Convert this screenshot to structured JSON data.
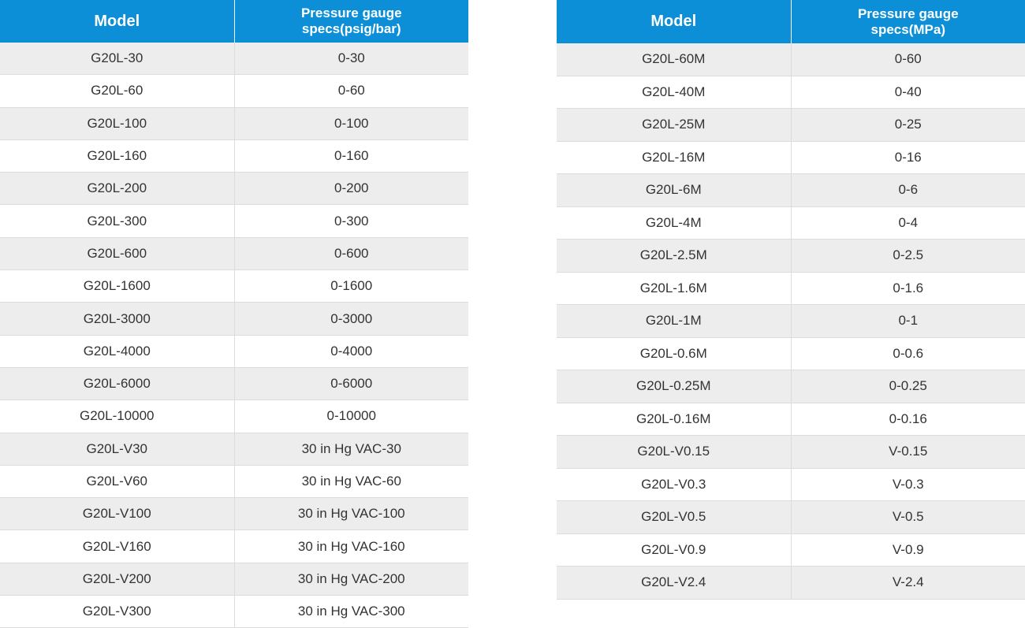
{
  "left_table": {
    "header": {
      "model": "Model",
      "spec_line1": "Pressure gauge",
      "spec_line2": "specs(psig/bar)"
    },
    "rows": [
      {
        "model": "G20L-30",
        "spec": "0-30"
      },
      {
        "model": "G20L-60",
        "spec": "0-60"
      },
      {
        "model": "G20L-100",
        "spec": "0-100"
      },
      {
        "model": "G20L-160",
        "spec": "0-160"
      },
      {
        "model": "G20L-200",
        "spec": "0-200"
      },
      {
        "model": "G20L-300",
        "spec": "0-300"
      },
      {
        "model": "G20L-600",
        "spec": "0-600"
      },
      {
        "model": "G20L-1600",
        "spec": "0-1600"
      },
      {
        "model": "G20L-3000",
        "spec": "0-3000"
      },
      {
        "model": "G20L-4000",
        "spec": "0-4000"
      },
      {
        "model": "G20L-6000",
        "spec": "0-6000"
      },
      {
        "model": "G20L-10000",
        "spec": "0-10000"
      },
      {
        "model": "G20L-V30",
        "spec": "30 in Hg VAC-30"
      },
      {
        "model": "G20L-V60",
        "spec": "30 in Hg VAC-60"
      },
      {
        "model": "G20L-V100",
        "spec": "30 in Hg VAC-100"
      },
      {
        "model": "G20L-V160",
        "spec": "30 in Hg VAC-160"
      },
      {
        "model": "G20L-V200",
        "spec": "30 in Hg VAC-200"
      },
      {
        "model": "G20L-V300",
        "spec": "30 in Hg VAC-300"
      }
    ]
  },
  "right_table": {
    "header": {
      "model": "Model",
      "spec_line1": "Pressure gauge",
      "spec_line2": "specs(MPa)"
    },
    "rows": [
      {
        "model": "G20L-60M",
        "spec": "0-60"
      },
      {
        "model": "G20L-40M",
        "spec": "0-40"
      },
      {
        "model": "G20L-25M",
        "spec": "0-25"
      },
      {
        "model": "G20L-16M",
        "spec": "0-16"
      },
      {
        "model": "G20L-6M",
        "spec": "0-6"
      },
      {
        "model": "G20L-4M",
        "spec": "0-4"
      },
      {
        "model": "G20L-2.5M",
        "spec": "0-2.5"
      },
      {
        "model": "G20L-1.6M",
        "spec": "0-1.6"
      },
      {
        "model": "G20L-1M",
        "spec": "0-1"
      },
      {
        "model": "G20L-0.6M",
        "spec": "0-0.6"
      },
      {
        "model": "G20L-0.25M",
        "spec": "0-0.25"
      },
      {
        "model": "G20L-0.16M",
        "spec": "0-0.16"
      },
      {
        "model": "G20L-V0.15",
        "spec": "V-0.15"
      },
      {
        "model": "G20L-V0.3",
        "spec": "V-0.3"
      },
      {
        "model": "G20L-V0.5",
        "spec": "V-0.5"
      },
      {
        "model": "G20L-V0.9",
        "spec": "V-0.9"
      },
      {
        "model": "G20L-V2.4",
        "spec": "V-2.4"
      }
    ]
  },
  "colors": {
    "header_bg": "#0c8fd6",
    "header_text": "#ffffff",
    "row_alt_bg": "#ededed",
    "row_bg": "#ffffff",
    "text": "#333333"
  }
}
